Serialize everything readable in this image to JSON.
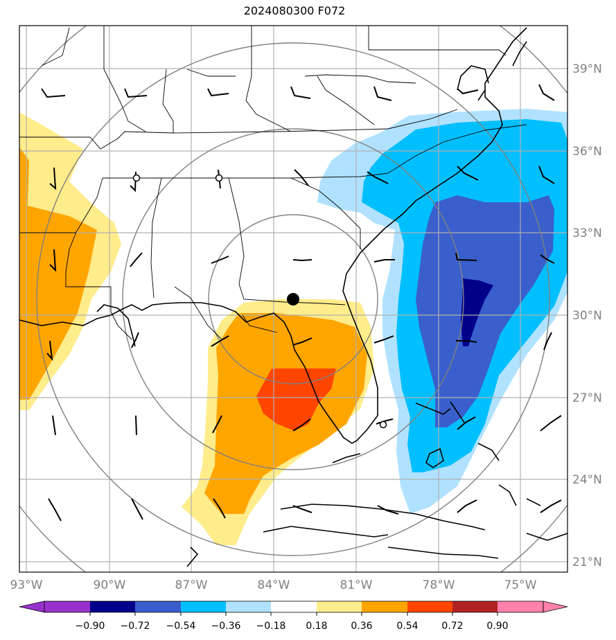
{
  "title": "2024080300 F072",
  "map": {
    "lon_labels": [
      "93°W",
      "90°W",
      "87°W",
      "84°W",
      "81°W",
      "78°W",
      "75°W"
    ],
    "lat_labels": [
      "39°N",
      "36°N",
      "33°N",
      "30°N",
      "27°N",
      "24°N",
      "21°N"
    ],
    "label_color": "#808080"
  },
  "colorbar": {
    "ticks": [
      "−0.90",
      "−0.72",
      "−0.54",
      "−0.36",
      "−0.18",
      "0.18",
      "0.36",
      "0.54",
      "0.72",
      "0.90"
    ],
    "colors": [
      "#9932cc",
      "#00008b",
      "#3a5fcd",
      "#00bfff",
      "#b0e2ff",
      "#ffffff",
      "#ffec8b",
      "#ffa500",
      "#ff4500",
      "#b22222",
      "#ff82ab"
    ]
  },
  "marker": {
    "label": "center point",
    "lon": -83.3,
    "lat": 30.5
  }
}
